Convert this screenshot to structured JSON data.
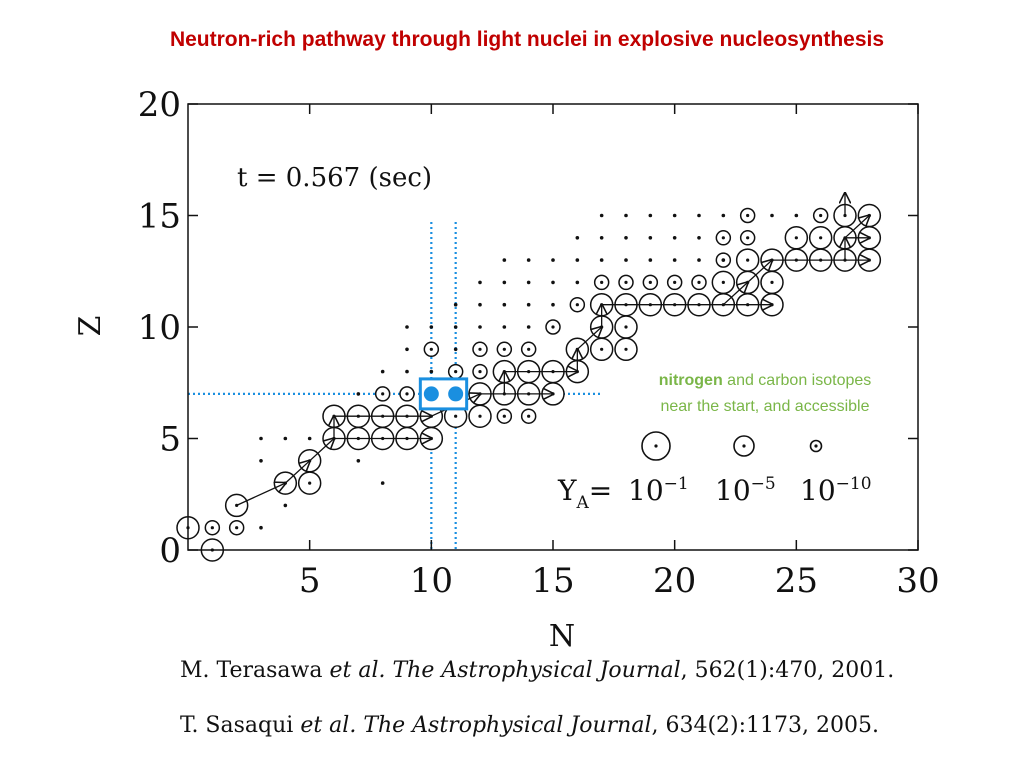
{
  "slide": {
    "title": "Neutron-rich pathway through light nuclei in explosive nucleosynthesis"
  },
  "chart_data": {
    "type": "scatter",
    "xlabel": "N",
    "ylabel": "Z",
    "xlim": [
      0,
      30
    ],
    "ylim": [
      0,
      20
    ],
    "xticks": [
      5,
      10,
      15,
      20,
      25,
      30
    ],
    "yticks": [
      0,
      5,
      10,
      15,
      20
    ],
    "grid": false,
    "annotation_time": "t = 0.567 (sec)",
    "highlight": {
      "lines_n": [
        10,
        11
      ],
      "line_z": 7,
      "box_nuclei": [
        [
          10,
          7
        ],
        [
          11,
          7
        ]
      ],
      "color": "#1a8fe0",
      "note_bold": "nitrogen",
      "note_rest": " and carbon isotopes",
      "note_line2": "near the start, and accessible",
      "note_color": "#7ab648"
    },
    "legend": {
      "label": "Y",
      "subscript": "A",
      "eq": "=",
      "entries": [
        {
          "base": "10",
          "exp": "−1",
          "size": "large"
        },
        {
          "base": "10",
          "exp": "−5",
          "size": "medium"
        },
        {
          "base": "10",
          "exp": "−10",
          "size": "small"
        }
      ]
    },
    "large_nuclei": [
      [
        0,
        1
      ],
      [
        1,
        0
      ],
      [
        2,
        2
      ],
      [
        4,
        3
      ],
      [
        5,
        3
      ],
      [
        5,
        4
      ],
      [
        6,
        5
      ],
      [
        7,
        5
      ],
      [
        8,
        5
      ],
      [
        9,
        5
      ],
      [
        10,
        5
      ],
      [
        6,
        6
      ],
      [
        7,
        6
      ],
      [
        8,
        6
      ],
      [
        9,
        6
      ],
      [
        10,
        6
      ],
      [
        11,
        6
      ],
      [
        12,
        6
      ],
      [
        12,
        7
      ],
      [
        13,
        7
      ],
      [
        14,
        7
      ],
      [
        15,
        7
      ],
      [
        13,
        8
      ],
      [
        14,
        8
      ],
      [
        15,
        8
      ],
      [
        16,
        8
      ],
      [
        16,
        9
      ],
      [
        17,
        9
      ],
      [
        18,
        9
      ],
      [
        17,
        10
      ],
      [
        18,
        10
      ],
      [
        17,
        11
      ],
      [
        18,
        11
      ],
      [
        19,
        11
      ],
      [
        20,
        11
      ],
      [
        21,
        11
      ],
      [
        22,
        11
      ],
      [
        23,
        11
      ],
      [
        24,
        11
      ],
      [
        22,
        12
      ],
      [
        23,
        12
      ],
      [
        24,
        12
      ],
      [
        23,
        13
      ],
      [
        24,
        13
      ],
      [
        25,
        13
      ],
      [
        26,
        13
      ],
      [
        27,
        13
      ],
      [
        28,
        13
      ],
      [
        25,
        14
      ],
      [
        26,
        14
      ],
      [
        27,
        14
      ],
      [
        28,
        14
      ],
      [
        27,
        15
      ],
      [
        28,
        15
      ]
    ],
    "medium_nuclei": [
      [
        1,
        1
      ],
      [
        2,
        1
      ],
      [
        8,
        7
      ],
      [
        9,
        7
      ],
      [
        10,
        9
      ],
      [
        11,
        8
      ],
      [
        12,
        8
      ],
      [
        12,
        9
      ],
      [
        13,
        9
      ],
      [
        14,
        9
      ],
      [
        13,
        6
      ],
      [
        14,
        6
      ],
      [
        15,
        10
      ],
      [
        16,
        11
      ],
      [
        17,
        12
      ],
      [
        18,
        12
      ],
      [
        19,
        12
      ],
      [
        20,
        12
      ],
      [
        21,
        12
      ],
      [
        22,
        13
      ],
      [
        22,
        14
      ],
      [
        23,
        14
      ],
      [
        23,
        15
      ],
      [
        26,
        15
      ]
    ],
    "small_nuclei": [
      [
        3,
        1
      ],
      [
        4,
        2
      ],
      [
        3,
        4
      ],
      [
        3,
        5
      ],
      [
        4,
        5
      ],
      [
        5,
        5
      ],
      [
        7,
        4
      ],
      [
        8,
        3
      ],
      [
        7,
        7
      ],
      [
        9,
        8
      ],
      [
        8,
        8
      ],
      [
        9,
        9
      ],
      [
        9,
        10
      ],
      [
        10,
        10
      ],
      [
        11,
        10
      ],
      [
        11,
        9
      ],
      [
        10,
        8
      ],
      [
        11,
        11
      ],
      [
        12,
        11
      ],
      [
        13,
        11
      ],
      [
        12,
        10
      ],
      [
        13,
        10
      ],
      [
        14,
        10
      ],
      [
        14,
        11
      ],
      [
        15,
        11
      ],
      [
        15,
        12
      ],
      [
        16,
        12
      ],
      [
        13,
        12
      ],
      [
        14,
        12
      ],
      [
        12,
        12
      ],
      [
        13,
        13
      ],
      [
        14,
        13
      ],
      [
        15,
        13
      ],
      [
        16,
        13
      ],
      [
        17,
        13
      ],
      [
        18,
        13
      ],
      [
        19,
        13
      ],
      [
        20,
        13
      ],
      [
        21,
        13
      ],
      [
        22,
        13
      ],
      [
        16,
        14
      ],
      [
        17,
        14
      ],
      [
        18,
        14
      ],
      [
        19,
        14
      ],
      [
        20,
        14
      ],
      [
        21,
        14
      ],
      [
        22,
        15
      ],
      [
        17,
        15
      ],
      [
        18,
        15
      ],
      [
        19,
        15
      ],
      [
        20,
        15
      ],
      [
        21,
        15
      ],
      [
        24,
        15
      ],
      [
        25,
        15
      ]
    ],
    "pathway_arrows": [
      [
        2,
        2,
        4,
        3
      ],
      [
        4,
        3,
        5,
        4
      ],
      [
        5,
        4,
        6,
        5
      ],
      [
        6,
        5,
        6,
        6
      ],
      [
        6,
        5,
        10,
        5
      ],
      [
        6,
        6,
        10,
        6
      ],
      [
        10,
        6,
        12,
        7
      ],
      [
        12,
        7,
        15,
        7
      ],
      [
        13,
        7,
        13,
        8
      ],
      [
        13,
        8,
        16,
        8
      ],
      [
        16,
        8,
        16,
        9
      ],
      [
        16,
        9,
        17,
        10
      ],
      [
        17,
        10,
        17,
        11
      ],
      [
        17,
        11,
        24,
        11
      ],
      [
        22,
        11,
        23,
        12
      ],
      [
        23,
        12,
        24,
        13
      ],
      [
        24,
        13,
        28,
        13
      ],
      [
        27,
        13,
        27,
        14
      ],
      [
        27,
        14,
        28,
        14
      ],
      [
        27,
        14,
        28,
        15
      ],
      [
        27,
        15,
        27,
        16
      ]
    ]
  },
  "references": [
    {
      "author": "M. Terasawa",
      "etal": "et al.",
      "journal": "The Astrophysical Journal",
      "rest": ", 562(1):470, 2001."
    },
    {
      "author": "T. Sasaqui",
      "etal": "et al.",
      "journal": "The Astrophysical Journal",
      "rest": ", 634(2):1173, 2005."
    }
  ]
}
